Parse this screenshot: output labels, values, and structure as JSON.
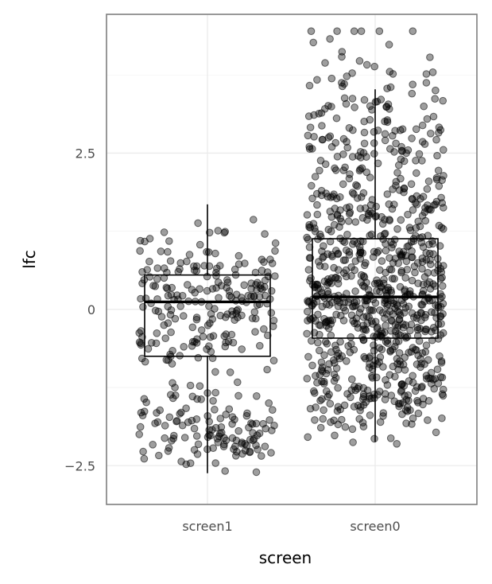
{
  "chart_data": {
    "type": "boxplot",
    "title": "",
    "xlabel": "screen",
    "ylabel": "lfc",
    "categories": [
      "screen1",
      "screen0"
    ],
    "y_ticks": [
      2.5,
      0,
      -2.5
    ],
    "y_tick_labels": [
      "2.5",
      "0",
      "−2.5"
    ],
    "ylim": [
      -3.12,
      4.72
    ],
    "grid": true,
    "legend": "none",
    "boxes": [
      {
        "category": "screen1",
        "q1": -0.75,
        "median": 0.12,
        "q3": 0.55,
        "whisker_low": -2.62,
        "whisker_high": 1.68
      },
      {
        "category": "screen0",
        "q1": -0.46,
        "median": 0.2,
        "q3": 1.13,
        "whisker_low": -2.12,
        "whisker_high": 3.52
      }
    ],
    "points": [
      {
        "category": "screen1",
        "n": 340,
        "y_min": -2.75,
        "y_max": 1.68
      },
      {
        "category": "screen0",
        "n": 900,
        "y_min": -2.15,
        "y_max": 4.45
      }
    ],
    "point_color": "#000000",
    "point_alpha": 0.4
  }
}
